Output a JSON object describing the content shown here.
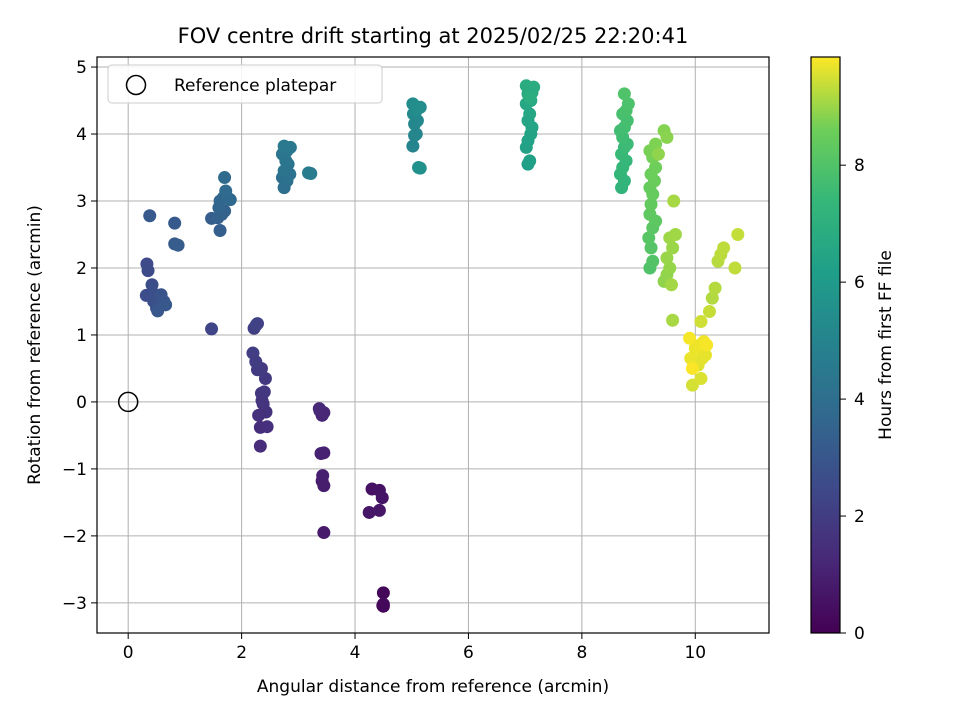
{
  "chart_data": {
    "type": "scatter",
    "title": "FOV centre drift starting at 2025/02/25 22:20:41",
    "xlabel": "Angular distance from reference (arcmin)",
    "ylabel": "Rotation from reference (arcmin)",
    "xlim": [
      -0.55,
      11.3
    ],
    "ylim": [
      -3.45,
      5.15
    ],
    "xticks": [
      0,
      2,
      4,
      6,
      8,
      10
    ],
    "yticks": [
      -3,
      -2,
      -1,
      0,
      1,
      2,
      3,
      4,
      5
    ],
    "xtick_labels": [
      "0",
      "2",
      "4",
      "6",
      "8",
      "10"
    ],
    "ytick_labels": [
      "−3",
      "−2",
      "−1",
      "0",
      "1",
      "2",
      "3",
      "4",
      "5"
    ],
    "grid": true,
    "legend": {
      "placement": "top-left",
      "entries": [
        "Reference platepar"
      ]
    },
    "reference_point": {
      "x": 0,
      "y": 0
    },
    "colorbar": {
      "label": "Hours from first FF file",
      "range": [
        0,
        9.85
      ],
      "ticks": [
        0,
        2,
        4,
        6,
        8
      ],
      "tick_labels": [
        "0",
        "2",
        "4",
        "6",
        "8"
      ],
      "colormap": "viridis"
    },
    "points": [
      [
        4.5,
        -3.05,
        0.1
      ],
      [
        4.49,
        -3.04,
        0.15
      ],
      [
        4.5,
        -2.85,
        0.2
      ],
      [
        4.5,
        -3.02,
        0.25
      ],
      [
        4.3,
        -1.3,
        0.5
      ],
      [
        4.43,
        -1.32,
        0.55
      ],
      [
        4.48,
        -1.43,
        0.6
      ],
      [
        4.43,
        -1.62,
        0.65
      ],
      [
        4.25,
        -1.65,
        0.7
      ],
      [
        3.45,
        -1.95,
        0.8
      ],
      [
        3.42,
        -1.18,
        0.85
      ],
      [
        3.45,
        -1.25,
        0.9
      ],
      [
        3.43,
        -1.1,
        0.95
      ],
      [
        3.4,
        -0.77,
        1.0
      ],
      [
        3.45,
        -0.76,
        1.05
      ],
      [
        3.38,
        -0.13,
        1.1
      ],
      [
        3.42,
        -0.2,
        1.15
      ],
      [
        3.45,
        -0.16,
        1.2
      ],
      [
        3.37,
        -0.1,
        1.25
      ],
      [
        2.33,
        -0.66,
        1.4
      ],
      [
        2.33,
        -0.38,
        1.45
      ],
      [
        2.45,
        -0.37,
        1.5
      ],
      [
        2.3,
        -0.2,
        1.55
      ],
      [
        2.43,
        -0.15,
        1.6
      ],
      [
        2.38,
        -0.03,
        1.65
      ],
      [
        2.36,
        0.02,
        1.7
      ],
      [
        2.35,
        0.13,
        1.75
      ],
      [
        2.4,
        0.15,
        1.8
      ],
      [
        2.42,
        0.35,
        1.85
      ],
      [
        2.35,
        0.5,
        1.9
      ],
      [
        2.28,
        0.48,
        1.95
      ],
      [
        2.25,
        0.6,
        2.0
      ],
      [
        2.2,
        0.73,
        2.05
      ],
      [
        2.22,
        1.1,
        2.1
      ],
      [
        2.26,
        1.15,
        2.15
      ],
      [
        2.28,
        1.17,
        2.2
      ],
      [
        1.47,
        1.09,
        2.3
      ],
      [
        0.33,
        2.06,
        2.5
      ],
      [
        0.35,
        1.96,
        2.55
      ],
      [
        0.32,
        1.59,
        2.6
      ],
      [
        0.42,
        1.75,
        2.65
      ],
      [
        0.45,
        1.5,
        2.7
      ],
      [
        0.48,
        1.6,
        2.75
      ],
      [
        0.5,
        1.4,
        2.8
      ],
      [
        0.55,
        1.45,
        2.85
      ],
      [
        0.58,
        1.6,
        2.9
      ],
      [
        0.63,
        1.5,
        2.95
      ],
      [
        0.66,
        1.45,
        3.0
      ],
      [
        0.52,
        1.36,
        3.05
      ],
      [
        0.38,
        2.78,
        3.1
      ],
      [
        0.82,
        2.67,
        3.15
      ],
      [
        0.82,
        2.36,
        3.2
      ],
      [
        0.88,
        2.34,
        3.25
      ],
      [
        1.47,
        2.74,
        3.3
      ],
      [
        1.62,
        2.56,
        3.35
      ],
      [
        1.58,
        2.75,
        3.4
      ],
      [
        1.65,
        2.8,
        3.45
      ],
      [
        1.7,
        2.85,
        3.5
      ],
      [
        1.6,
        2.9,
        3.55
      ],
      [
        1.62,
        3.0,
        3.6
      ],
      [
        1.68,
        3.05,
        3.65
      ],
      [
        1.75,
        3.05,
        3.7
      ],
      [
        1.8,
        3.02,
        3.75
      ],
      [
        1.72,
        3.15,
        3.8
      ],
      [
        1.7,
        3.35,
        3.85
      ],
      [
        2.75,
        3.2,
        4.0
      ],
      [
        2.72,
        3.35,
        4.05
      ],
      [
        2.8,
        3.3,
        4.1
      ],
      [
        2.85,
        3.4,
        4.15
      ],
      [
        2.75,
        3.45,
        4.2
      ],
      [
        2.82,
        3.55,
        4.25
      ],
      [
        2.78,
        3.6,
        4.3
      ],
      [
        2.72,
        3.7,
        4.35
      ],
      [
        2.8,
        3.75,
        4.4
      ],
      [
        2.86,
        3.8,
        4.45
      ],
      [
        2.75,
        3.82,
        4.5
      ],
      [
        3.18,
        3.42,
        4.6
      ],
      [
        3.22,
        3.41,
        4.65
      ],
      [
        5.02,
        3.82,
        5.0
      ],
      [
        5.05,
        3.98,
        5.05
      ],
      [
        5.08,
        4.0,
        5.1
      ],
      [
        5.05,
        4.15,
        5.15
      ],
      [
        5.1,
        4.2,
        5.2
      ],
      [
        5.03,
        4.3,
        5.25
      ],
      [
        5.08,
        4.35,
        5.3
      ],
      [
        5.15,
        4.4,
        5.35
      ],
      [
        5.02,
        4.45,
        5.4
      ],
      [
        5.1,
        4.38,
        5.45
      ],
      [
        5.12,
        3.5,
        5.5
      ],
      [
        5.15,
        3.49,
        5.55
      ],
      [
        7.05,
        3.55,
        6.2
      ],
      [
        7.08,
        3.6,
        6.25
      ],
      [
        7.02,
        3.8,
        6.3
      ],
      [
        7.05,
        3.9,
        6.35
      ],
      [
        7.1,
        4.0,
        6.4
      ],
      [
        7.12,
        4.1,
        6.45
      ],
      [
        7.05,
        4.2,
        6.5
      ],
      [
        7.08,
        4.3,
        6.55
      ],
      [
        7.02,
        4.45,
        6.6
      ],
      [
        7.1,
        4.5,
        6.65
      ],
      [
        7.05,
        4.6,
        6.7
      ],
      [
        7.12,
        4.62,
        6.75
      ],
      [
        7.15,
        4.7,
        6.8
      ],
      [
        7.02,
        4.72,
        6.85
      ],
      [
        7.08,
        4.55,
        6.9
      ],
      [
        8.7,
        3.2,
        7.2
      ],
      [
        8.75,
        3.3,
        7.25
      ],
      [
        8.68,
        3.4,
        7.3
      ],
      [
        8.72,
        3.5,
        7.35
      ],
      [
        8.78,
        3.6,
        7.4
      ],
      [
        8.7,
        3.7,
        7.45
      ],
      [
        8.75,
        3.8,
        7.5
      ],
      [
        8.8,
        3.85,
        7.55
      ],
      [
        8.72,
        3.95,
        7.6
      ],
      [
        8.68,
        4.05,
        7.65
      ],
      [
        8.75,
        4.1,
        7.7
      ],
      [
        8.8,
        4.2,
        7.75
      ],
      [
        8.72,
        4.3,
        7.8
      ],
      [
        8.78,
        4.35,
        7.85
      ],
      [
        8.82,
        4.45,
        7.9
      ],
      [
        8.75,
        4.6,
        7.95
      ],
      [
        9.2,
        2.0,
        8.0
      ],
      [
        9.25,
        2.1,
        8.05
      ],
      [
        9.22,
        2.3,
        8.1
      ],
      [
        9.18,
        2.45,
        8.15
      ],
      [
        9.25,
        2.6,
        8.2
      ],
      [
        9.3,
        2.7,
        8.25
      ],
      [
        9.2,
        2.8,
        8.3
      ],
      [
        9.22,
        2.95,
        8.35
      ],
      [
        9.25,
        3.1,
        8.4
      ],
      [
        9.2,
        3.2,
        8.45
      ],
      [
        9.28,
        3.3,
        8.5
      ],
      [
        9.22,
        3.4,
        8.55
      ],
      [
        9.3,
        3.5,
        8.6
      ],
      [
        9.25,
        3.65,
        8.65
      ],
      [
        9.2,
        3.75,
        8.7
      ],
      [
        9.3,
        3.85,
        8.75
      ],
      [
        9.45,
        4.05,
        8.8
      ],
      [
        9.5,
        3.95,
        8.85
      ],
      [
        9.35,
        3.7,
        8.9
      ],
      [
        9.45,
        1.8,
        8.9
      ],
      [
        9.5,
        1.9,
        8.93
      ],
      [
        9.55,
        2.0,
        8.95
      ],
      [
        9.5,
        2.15,
        8.98
      ],
      [
        9.6,
        2.3,
        9.0
      ],
      [
        9.55,
        2.45,
        9.02
      ],
      [
        9.65,
        2.5,
        9.05
      ],
      [
        9.58,
        1.75,
        9.08
      ],
      [
        9.62,
        3.0,
        9.1
      ],
      [
        9.6,
        1.22,
        9.12
      ],
      [
        10.3,
        1.55,
        9.2
      ],
      [
        10.35,
        1.7,
        9.22
      ],
      [
        10.4,
        2.1,
        9.25
      ],
      [
        10.45,
        2.2,
        9.28
      ],
      [
        10.5,
        2.3,
        9.3
      ],
      [
        10.7,
        2.0,
        9.32
      ],
      [
        10.75,
        2.5,
        9.35
      ],
      [
        10.25,
        1.35,
        9.38
      ],
      [
        10.1,
        1.2,
        9.45
      ],
      [
        9.95,
        0.25,
        9.5
      ],
      [
        10.1,
        0.35,
        9.55
      ],
      [
        10.05,
        0.55,
        9.6
      ],
      [
        10.12,
        0.65,
        9.62
      ],
      [
        10.18,
        0.7,
        9.65
      ],
      [
        9.92,
        0.65,
        9.68
      ],
      [
        10.0,
        0.8,
        9.7
      ],
      [
        10.08,
        0.85,
        9.72
      ],
      [
        10.15,
        0.9,
        9.75
      ],
      [
        9.9,
        0.95,
        9.78
      ],
      [
        10.2,
        0.85,
        9.8
      ],
      [
        9.95,
        0.5,
        9.82
      ]
    ]
  }
}
